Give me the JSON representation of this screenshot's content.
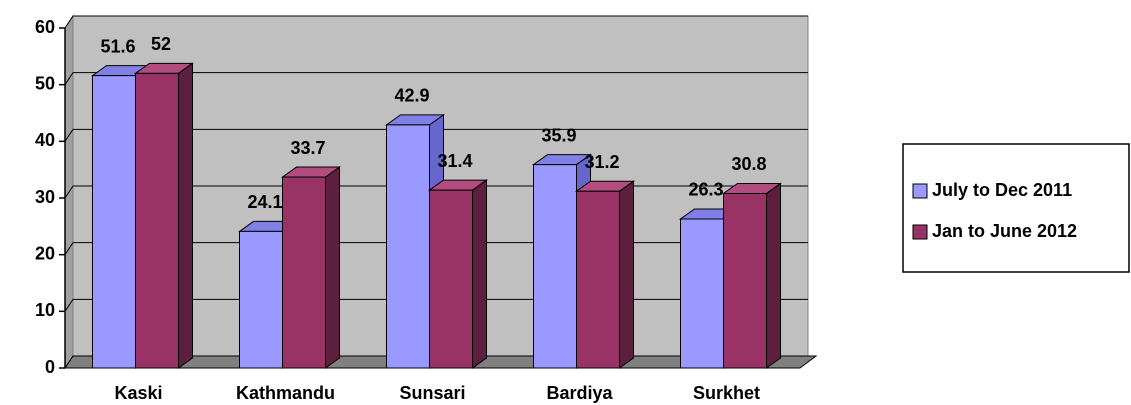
{
  "chart_data": {
    "type": "bar",
    "categories": [
      "Kaski",
      "Kathmandu",
      "Sunsari",
      "Bardiya",
      "Surkhet"
    ],
    "series": [
      {
        "name": "July to Dec 2011",
        "color": "#9999ff",
        "values": [
          51.6,
          24.1,
          42.9,
          35.9,
          26.3
        ]
      },
      {
        "name": "Jan to June 2012",
        "color": "#993366",
        "values": [
          52,
          33.7,
          31.4,
          31.2,
          30.8
        ]
      }
    ],
    "ylim": [
      0,
      60
    ],
    "yticks": [
      0,
      10,
      20,
      30,
      40,
      50,
      60
    ],
    "grid": true,
    "legend": "right"
  }
}
